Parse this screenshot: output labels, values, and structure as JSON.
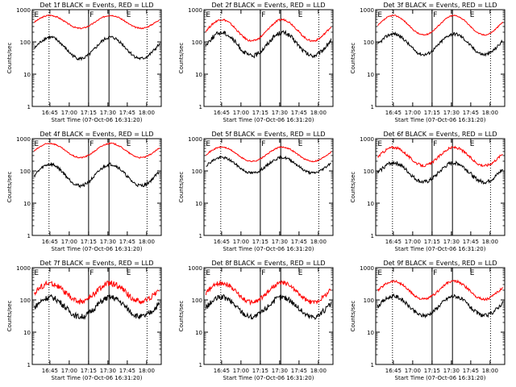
{
  "chart_data": [
    {
      "type": "line",
      "title": "Det 1f BLACK = Events, RED = LLD",
      "xlabel": "Start Time (07-Oct-06 16:31:20)",
      "ylabel": "Counts/sec",
      "yscale": "log",
      "ylim": [
        1,
        1000
      ],
      "x_ticks": [
        "16:45",
        "17:00",
        "17:15",
        "17:30",
        "17:45",
        "18:00"
      ],
      "y_ticks": [
        "1",
        "10",
        "100",
        "1000"
      ],
      "markers": [
        "F",
        "E"
      ],
      "series": [
        {
          "color": "#ff0000",
          "base": 420,
          "amp": 0.2,
          "noise": 0.02
        },
        {
          "color": "#000000",
          "base": 65,
          "amp": 0.33,
          "noise": 0.05
        }
      ]
    },
    {
      "type": "line",
      "title": "Det 2f BLACK = Events, RED = LLD",
      "xlabel": "Start Time (07-Oct-06 16:31:20)",
      "ylabel": "Counts/sec",
      "yscale": "log",
      "ylim": [
        1,
        1000
      ],
      "x_ticks": [
        "16:45",
        "17:00",
        "17:15",
        "17:30",
        "17:45",
        "18:00"
      ],
      "y_ticks": [
        "1",
        "10",
        "100",
        "1000"
      ],
      "markers": [
        "F",
        "E"
      ],
      "series": [
        {
          "color": "#ff0000",
          "base": 230,
          "amp": 0.33,
          "noise": 0.03
        },
        {
          "color": "#000000",
          "base": 85,
          "amp": 0.36,
          "noise": 0.07
        }
      ]
    },
    {
      "type": "line",
      "title": "Det 3f BLACK = Events, RED = LLD",
      "xlabel": "Start Time (07-Oct-06 16:31:20)",
      "ylabel": "Counts/sec",
      "yscale": "log",
      "ylim": [
        1,
        1000
      ],
      "x_ticks": [
        "16:45",
        "17:00",
        "17:15",
        "17:30",
        "17:45",
        "18:00"
      ],
      "y_ticks": [
        "1",
        "10",
        "100",
        "1000"
      ],
      "markers": [
        "F",
        "E"
      ],
      "series": [
        {
          "color": "#ff0000",
          "base": 330,
          "amp": 0.3,
          "noise": 0.02
        },
        {
          "color": "#000000",
          "base": 85,
          "amp": 0.32,
          "noise": 0.05
        }
      ]
    },
    {
      "type": "line",
      "title": "Det 4f BLACK = Events, RED = LLD",
      "xlabel": "Start Time (07-Oct-06 16:31:20)",
      "ylabel": "Counts/sec",
      "yscale": "log",
      "ylim": [
        1,
        1000
      ],
      "x_ticks": [
        "16:45",
        "17:00",
        "17:15",
        "17:30",
        "17:45",
        "18:00"
      ],
      "y_ticks": [
        "1",
        "10",
        "100",
        "1000"
      ],
      "markers": [
        "F",
        "E"
      ],
      "series": [
        {
          "color": "#ff0000",
          "base": 430,
          "amp": 0.22,
          "noise": 0.02
        },
        {
          "color": "#000000",
          "base": 75,
          "amp": 0.33,
          "noise": 0.05
        }
      ]
    },
    {
      "type": "line",
      "title": "Det 5f BLACK = Events, RED = LLD",
      "xlabel": "Start Time (07-Oct-06 16:31:20)",
      "ylabel": "Counts/sec",
      "yscale": "log",
      "ylim": [
        1,
        1000
      ],
      "x_ticks": [
        "16:45",
        "17:00",
        "17:15",
        "17:30",
        "17:45",
        "18:00"
      ],
      "y_ticks": [
        "1",
        "10",
        "100",
        "1000"
      ],
      "markers": [
        "F",
        "E"
      ],
      "series": [
        {
          "color": "#ff0000",
          "base": 330,
          "amp": 0.22,
          "noise": 0.02
        },
        {
          "color": "#000000",
          "base": 150,
          "amp": 0.24,
          "noise": 0.04
        }
      ]
    },
    {
      "type": "line",
      "title": "Det 6f BLACK = Events, RED = LLD",
      "xlabel": "Start Time (07-Oct-06 16:31:20)",
      "ylabel": "Counts/sec",
      "yscale": "log",
      "ylim": [
        1,
        1000
      ],
      "x_ticks": [
        "16:45",
        "17:00",
        "17:15",
        "17:30",
        "17:45",
        "18:00"
      ],
      "y_ticks": [
        "1",
        "10",
        "100",
        "1000"
      ],
      "markers": [
        "F",
        "E"
      ],
      "series": [
        {
          "color": "#ff0000",
          "base": 280,
          "amp": 0.28,
          "noise": 0.04
        },
        {
          "color": "#000000",
          "base": 90,
          "amp": 0.3,
          "noise": 0.06
        }
      ]
    },
    {
      "type": "line",
      "title": "Det 7f BLACK = Events, RED = LLD",
      "xlabel": "Start Time (07-Oct-06 16:31:20)",
      "ylabel": "Counts/sec",
      "yscale": "log",
      "ylim": [
        1,
        1000
      ],
      "x_ticks": [
        "16:45",
        "17:00",
        "17:15",
        "17:30",
        "17:45",
        "18:00"
      ],
      "y_ticks": [
        "1",
        "10",
        "100",
        "1000"
      ],
      "markers": [
        "F",
        "E"
      ],
      "series": [
        {
          "color": "#ff0000",
          "base": 170,
          "amp": 0.28,
          "noise": 0.09
        },
        {
          "color": "#000000",
          "base": 60,
          "amp": 0.3,
          "noise": 0.09
        }
      ]
    },
    {
      "type": "line",
      "title": "Det 8f BLACK = Events, RED = LLD",
      "xlabel": "Start Time (07-Oct-06 16:31:20)",
      "ylabel": "Counts/sec",
      "yscale": "log",
      "ylim": [
        1,
        1000
      ],
      "x_ticks": [
        "16:45",
        "17:00",
        "17:15",
        "17:30",
        "17:45",
        "18:00"
      ],
      "y_ticks": [
        "1",
        "10",
        "100",
        "1000"
      ],
      "markers": [
        "F",
        "E"
      ],
      "series": [
        {
          "color": "#ff0000",
          "base": 170,
          "amp": 0.3,
          "noise": 0.07
        },
        {
          "color": "#000000",
          "base": 60,
          "amp": 0.3,
          "noise": 0.09
        }
      ]
    },
    {
      "type": "line",
      "title": "Det 9f BLACK = Events, RED = LLD",
      "xlabel": "Start Time (07-Oct-06 16:31:20)",
      "ylabel": "Counts/sec",
      "yscale": "log",
      "ylim": [
        1,
        1000
      ],
      "x_ticks": [
        "16:45",
        "17:00",
        "17:15",
        "17:30",
        "17:45",
        "18:00"
      ],
      "y_ticks": [
        "1",
        "10",
        "100",
        "1000"
      ],
      "markers": [
        "F",
        "E"
      ],
      "series": [
        {
          "color": "#ff0000",
          "base": 200,
          "amp": 0.28,
          "noise": 0.04
        },
        {
          "color": "#000000",
          "base": 65,
          "amp": 0.3,
          "noise": 0.06
        }
      ]
    }
  ]
}
